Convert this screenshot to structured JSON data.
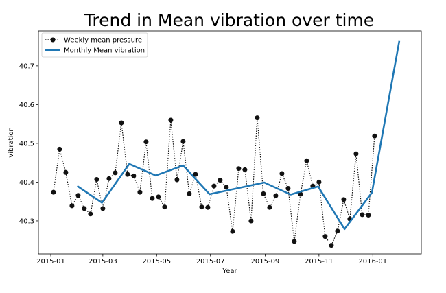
{
  "chart_data": {
    "type": "line",
    "title": "Trend in Mean vibration over time",
    "xlabel": "Year",
    "ylabel": "vibration",
    "xlim": [
      "2014-12-18",
      "2016-02-25"
    ],
    "ylim": [
      40.215,
      40.79
    ],
    "x_ticks": [
      "2015-01-01",
      "2015-03-01",
      "2015-05-01",
      "2015-07-01",
      "2015-09-01",
      "2015-11-01",
      "2016-01-01"
    ],
    "x_tick_labels": [
      "2015-01",
      "2015-03",
      "2015-05",
      "2015-07",
      "2015-09",
      "2015-11",
      "2016-01"
    ],
    "y_ticks": [
      40.3,
      40.4,
      40.5,
      40.6,
      40.7
    ],
    "y_tick_labels": [
      "40.3",
      "40.4",
      "40.5",
      "40.6",
      "40.7"
    ],
    "grid": false,
    "legend_position": "top-left",
    "series": [
      {
        "name": "Weekly mean pressure",
        "style": "dotted-with-markers",
        "color": "#111111",
        "x": [
          "2015-01-04",
          "2015-01-11",
          "2015-01-18",
          "2015-01-25",
          "2015-02-01",
          "2015-02-08",
          "2015-02-15",
          "2015-02-22",
          "2015-03-01",
          "2015-03-08",
          "2015-03-15",
          "2015-03-22",
          "2015-03-29",
          "2015-04-05",
          "2015-04-12",
          "2015-04-19",
          "2015-04-26",
          "2015-05-03",
          "2015-05-10",
          "2015-05-17",
          "2015-05-24",
          "2015-05-31",
          "2015-06-07",
          "2015-06-14",
          "2015-06-21",
          "2015-06-28",
          "2015-07-05",
          "2015-07-12",
          "2015-07-19",
          "2015-07-26",
          "2015-08-02",
          "2015-08-09",
          "2015-08-16",
          "2015-08-23",
          "2015-08-30",
          "2015-09-06",
          "2015-09-13",
          "2015-09-20",
          "2015-09-27",
          "2015-10-04",
          "2015-10-11",
          "2015-10-18",
          "2015-10-25",
          "2015-11-01",
          "2015-11-08",
          "2015-11-15",
          "2015-11-22",
          "2015-11-29",
          "2015-12-06",
          "2015-12-13",
          "2015-12-20",
          "2015-12-27",
          "2016-01-03"
        ],
        "values": [
          40.374,
          40.485,
          40.425,
          40.339,
          40.366,
          40.332,
          40.318,
          40.407,
          40.332,
          40.409,
          40.424,
          40.553,
          40.42,
          40.416,
          40.374,
          40.504,
          40.358,
          40.362,
          40.336,
          40.56,
          40.406,
          40.505,
          40.37,
          40.42,
          40.336,
          40.335,
          40.39,
          40.405,
          40.387,
          40.273,
          40.435,
          40.432,
          40.3,
          40.566,
          40.37,
          40.335,
          40.365,
          40.422,
          40.384,
          40.247,
          40.369,
          40.455,
          40.39,
          40.4,
          40.26,
          40.237,
          40.274,
          40.355,
          40.305,
          40.473,
          40.316,
          40.315,
          40.519
        ]
      },
      {
        "name": "Monthly Mean vibration",
        "style": "solid",
        "color": "#1f77b4",
        "x": [
          "2015-01-31",
          "2015-02-28",
          "2015-03-31",
          "2015-04-30",
          "2015-05-31",
          "2015-06-30",
          "2015-07-31",
          "2015-08-31",
          "2015-09-30",
          "2015-10-31",
          "2015-11-30",
          "2015-12-31",
          "2016-01-31"
        ],
        "values": [
          40.39,
          40.347,
          40.447,
          40.417,
          40.443,
          40.369,
          40.384,
          40.399,
          40.368,
          40.389,
          40.279,
          40.373,
          40.764
        ]
      }
    ]
  }
}
